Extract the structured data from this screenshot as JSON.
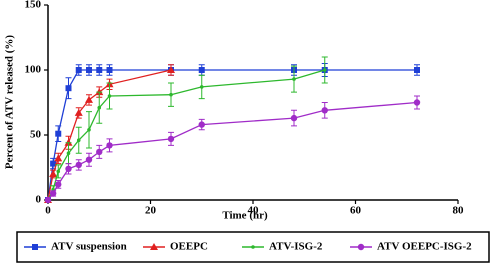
{
  "chart_data": {
    "type": "line",
    "x_label": "Time (hr)",
    "y_label": "Percent of ATV released (%)",
    "xlim": [
      0,
      80
    ],
    "xticks": [
      0,
      20,
      40,
      60,
      80
    ],
    "ylim": [
      0,
      150
    ],
    "yticks": [
      0,
      50,
      100,
      150
    ],
    "legend": "bottom",
    "series": [
      {
        "name": "ATV suspension",
        "color": "#1f3fd6",
        "marker": "square",
        "x": [
          0,
          1,
          2,
          4,
          6,
          8,
          10,
          12,
          24,
          30,
          48,
          54,
          72
        ],
        "values": [
          0,
          28,
          51,
          86,
          100,
          100,
          100,
          100,
          100,
          100,
          100,
          100,
          100
        ],
        "errors": [
          0,
          4,
          6,
          8,
          4,
          4,
          4,
          4,
          4,
          4,
          4,
          5,
          4
        ]
      },
      {
        "name": "OEEPC",
        "color": "#e02020",
        "marker": "triangle",
        "x": [
          0,
          1,
          2,
          4,
          6,
          8,
          10,
          12,
          24
        ],
        "values": [
          0,
          20,
          32,
          44,
          67,
          77,
          83,
          89,
          100
        ],
        "errors": [
          0,
          3,
          4,
          5,
          4,
          4,
          4,
          4,
          4
        ]
      },
      {
        "name": "ATV-ISG-2",
        "color": "#2db82d",
        "marker": "dot",
        "x": [
          0,
          1,
          2,
          4,
          6,
          8,
          10,
          12,
          24,
          30,
          48,
          54
        ],
        "values": [
          0,
          8,
          22,
          36,
          46,
          54,
          71,
          80,
          81,
          87,
          93,
          100
        ],
        "errors": [
          0,
          3,
          5,
          8,
          10,
          14,
          12,
          10,
          9,
          9,
          10,
          10
        ]
      },
      {
        "name": "ATV OEEPC-ISG-2",
        "color": "#a02cc8",
        "marker": "circle",
        "x": [
          0,
          1,
          2,
          4,
          6,
          8,
          10,
          12,
          24,
          30,
          48,
          54,
          72
        ],
        "values": [
          0,
          5,
          12,
          24,
          27,
          31,
          37,
          42,
          47,
          58,
          63,
          69,
          75
        ],
        "errors": [
          0,
          2,
          3,
          4,
          4,
          5,
          5,
          5,
          5,
          4,
          6,
          6,
          5
        ]
      }
    ]
  }
}
